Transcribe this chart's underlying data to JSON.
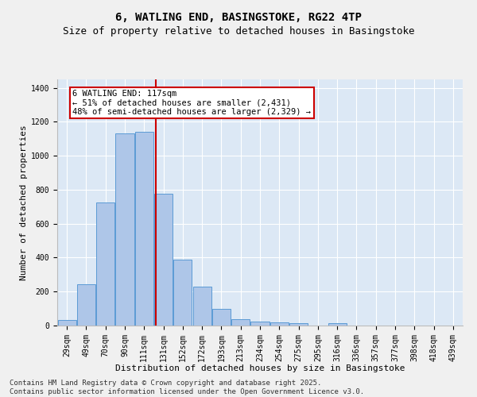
{
  "title_line1": "6, WATLING END, BASINGSTOKE, RG22 4TP",
  "title_line2": "Size of property relative to detached houses in Basingstoke",
  "xlabel": "Distribution of detached houses by size in Basingstoke",
  "ylabel": "Number of detached properties",
  "categories": [
    "29sqm",
    "49sqm",
    "70sqm",
    "90sqm",
    "111sqm",
    "131sqm",
    "152sqm",
    "172sqm",
    "193sqm",
    "213sqm",
    "234sqm",
    "254sqm",
    "275sqm",
    "295sqm",
    "316sqm",
    "336sqm",
    "357sqm",
    "377sqm",
    "398sqm",
    "418sqm",
    "439sqm"
  ],
  "values": [
    35,
    245,
    725,
    1130,
    1140,
    775,
    390,
    230,
    100,
    38,
    25,
    20,
    15,
    0,
    12,
    0,
    0,
    0,
    0,
    0,
    0
  ],
  "bar_color": "#aec6e8",
  "bar_edge_color": "#5b9bd5",
  "vline_x": 4.6,
  "vline_color": "#cc0000",
  "annotation_text": "6 WATLING END: 117sqm\n← 51% of detached houses are smaller (2,431)\n48% of semi-detached houses are larger (2,329) →",
  "annotation_box_facecolor": "#ffffff",
  "annotation_box_edgecolor": "#cc0000",
  "ylim": [
    0,
    1450
  ],
  "yticks": [
    0,
    200,
    400,
    600,
    800,
    1000,
    1200,
    1400
  ],
  "background_color": "#dce8f5",
  "fig_facecolor": "#f0f0f0",
  "footer_text": "Contains HM Land Registry data © Crown copyright and database right 2025.\nContains public sector information licensed under the Open Government Licence v3.0.",
  "title_fontsize": 10,
  "subtitle_fontsize": 9,
  "axis_label_fontsize": 8,
  "tick_fontsize": 7,
  "annotation_fontsize": 7.5,
  "footer_fontsize": 6.5
}
